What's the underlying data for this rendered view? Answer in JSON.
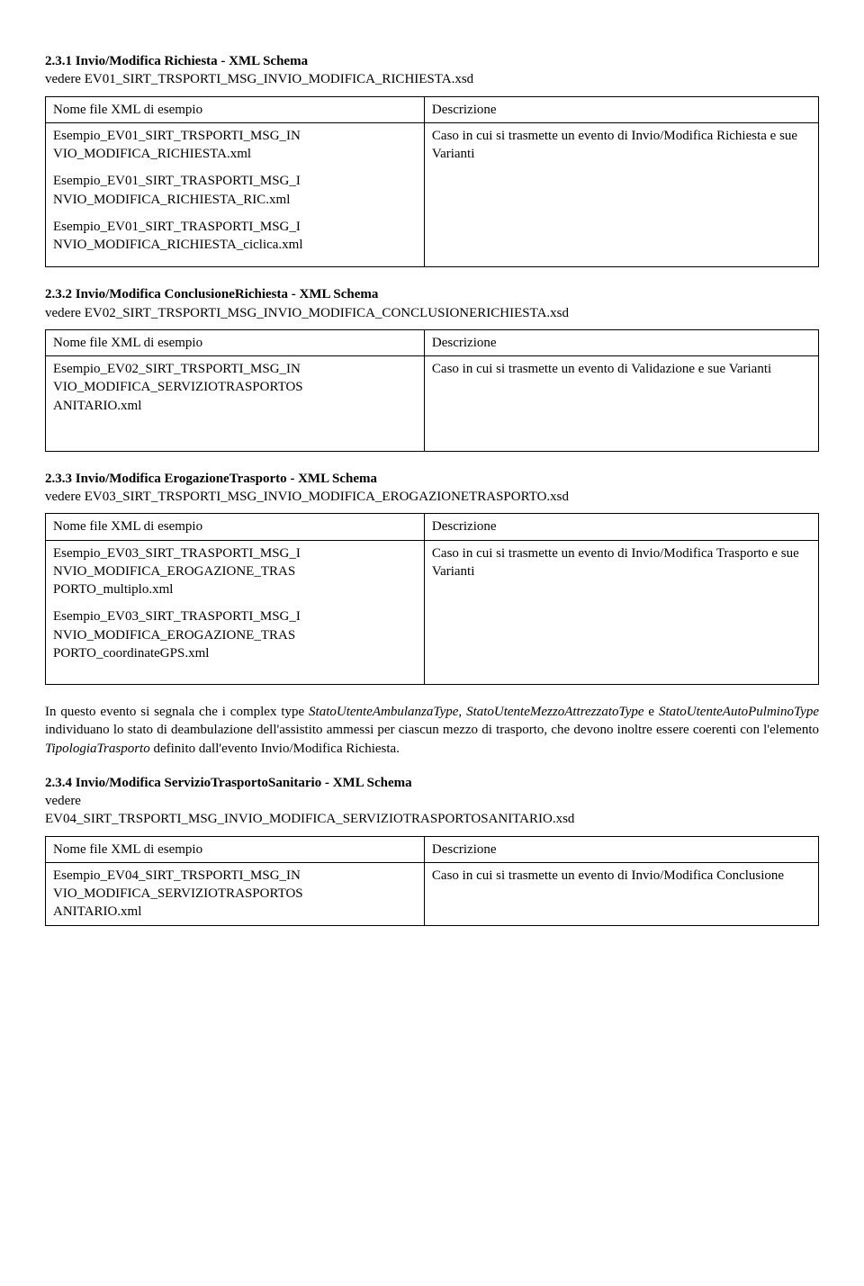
{
  "s231": {
    "heading": "2.3.1 Invio/Modifica Richiesta - XML Schema",
    "sub": "vedere EV01_SIRT_TRSPORTI_MSG_INVIO_MODIFICA_RICHIESTA.xsd",
    "col1_header": "Nome file XML di esempio",
    "col2_header": "Descrizione",
    "cell_left_a": "Esempio_EV01_SIRT_TRSPORTI_MSG_IN\nVIO_MODIFICA_RICHIESTA.xml",
    "cell_left_b": "Esempio_EV01_SIRT_TRASPORTI_MSG_I\nNVIO_MODIFICA_RICHIESTA_RIC.xml",
    "cell_left_c": "Esempio_EV01_SIRT_TRASPORTI_MSG_I\nNVIO_MODIFICA_RICHIESTA_ciclica.xml",
    "cell_right": "Caso in cui si trasmette un evento di Invio/Modifica Richiesta e sue Varianti"
  },
  "s232": {
    "heading": "2.3.2 Invio/Modifica ConclusioneRichiesta - XML Schema",
    "sub": "vedere EV02_SIRT_TRSPORTI_MSG_INVIO_MODIFICA_CONCLUSIONERICHIESTA.xsd",
    "col1_header": "Nome file XML di esempio",
    "col2_header": "Descrizione",
    "cell_left": "Esempio_EV02_SIRT_TRSPORTI_MSG_IN\nVIO_MODIFICA_SERVIZIOTRASPORTOS\nANITARIO.xml",
    "cell_right": "Caso in cui si trasmette un evento di Validazione e sue Varianti"
  },
  "s233": {
    "heading": "2.3.3 Invio/Modifica ErogazioneTrasporto - XML Schema",
    "sub": "vedere EV03_SIRT_TRSPORTI_MSG_INVIO_MODIFICA_EROGAZIONETRASPORTO.xsd",
    "col1_header": "Nome file XML di esempio",
    "col2_header": "Descrizione",
    "cell_left_a": "Esempio_EV03_SIRT_TRASPORTI_MSG_I\nNVIO_MODIFICA_EROGAZIONE_TRAS\nPORTO_multiplo.xml",
    "cell_left_b": "Esempio_EV03_SIRT_TRASPORTI_MSG_I\nNVIO_MODIFICA_EROGAZIONE_TRAS\nPORTO_coordinateGPS.xml",
    "cell_right": "Caso in cui si trasmette un evento di Invio/Modifica Trasporto e sue Varianti"
  },
  "body_para_prefix": "In questo evento si segnala che i complex type ",
  "body_type1": "StatoUtenteAmbulanzaType,",
  "body_mid1": " ",
  "body_type2": "StatoUtenteMezzoAttrezzatoType",
  "body_mid2": " e ",
  "body_type3": "StatoUtenteAutoPulminoType",
  "body_mid3": " individuano lo stato di deambulazione dell'assistito ammessi per ciascun mezzo di trasporto, che devono inoltre essere coerenti con l'elemento ",
  "body_type4": "TipologiaTrasporto",
  "body_suffix": " definito dall'evento Invio/Modifica Richiesta.",
  "s234": {
    "heading": "2.3.4 Invio/Modifica ServizioTrasportoSanitario - XML Schema",
    "sub_a": "vedere",
    "sub_b": "EV04_SIRT_TRSPORTI_MSG_INVIO_MODIFICA_SERVIZIOTRASPORTOSANITARIO.xsd",
    "col1_header": "Nome file XML di esempio",
    "col2_header": "Descrizione",
    "cell_left": "Esempio_EV04_SIRT_TRSPORTI_MSG_IN\nVIO_MODIFICA_SERVIZIOTRASPORTOS\nANITARIO.xml",
    "cell_right": "Caso in cui si trasmette un evento di Invio/Modifica Conclusione"
  }
}
